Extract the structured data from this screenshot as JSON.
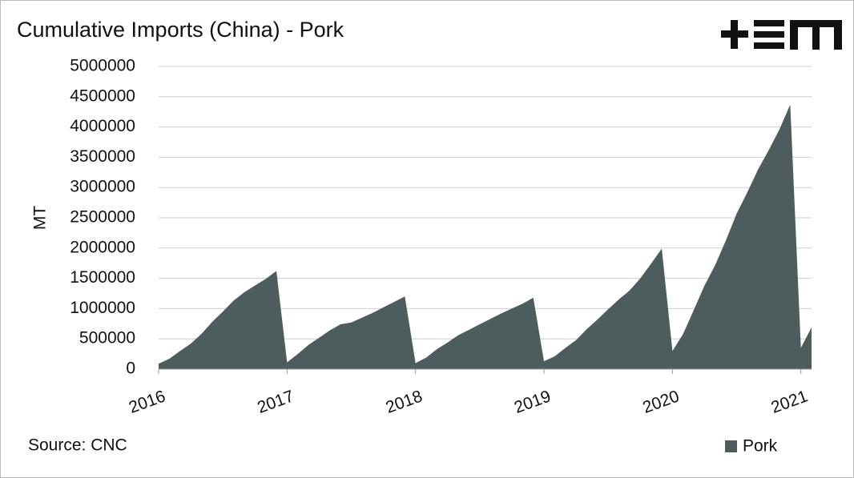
{
  "chart_data": {
    "type": "area",
    "title": "Cumulative Imports (China) - Pork",
    "ylabel": "MT",
    "source": "Source: CNC",
    "x": [
      2016,
      2016.083,
      2016.167,
      2016.25,
      2016.333,
      2016.417,
      2016.5,
      2016.583,
      2016.667,
      2016.75,
      2016.833,
      2016.917,
      2017,
      2017.083,
      2017.167,
      2017.25,
      2017.333,
      2017.417,
      2017.5,
      2017.583,
      2017.667,
      2017.75,
      2017.833,
      2017.917,
      2018,
      2018.083,
      2018.167,
      2018.25,
      2018.333,
      2018.417,
      2018.5,
      2018.583,
      2018.667,
      2018.75,
      2018.833,
      2018.917,
      2019,
      2019.083,
      2019.167,
      2019.25,
      2019.333,
      2019.417,
      2019.5,
      2019.583,
      2019.667,
      2019.75,
      2019.833,
      2019.917,
      2020,
      2020.083,
      2020.167,
      2020.25,
      2020.333,
      2020.417,
      2020.5,
      2020.583,
      2020.667,
      2020.75,
      2020.833,
      2020.917,
      2021,
      2021.083
    ],
    "series": [
      {
        "name": "Pork",
        "color": "#4d5c5c",
        "values": [
          90000,
          170000,
          300000,
          420000,
          580000,
          780000,
          950000,
          1130000,
          1270000,
          1380000,
          1490000,
          1620000,
          110000,
          250000,
          400000,
          520000,
          640000,
          740000,
          770000,
          850000,
          930000,
          1020000,
          1110000,
          1200000,
          100000,
          190000,
          330000,
          440000,
          560000,
          650000,
          740000,
          830000,
          920000,
          1000000,
          1080000,
          1180000,
          130000,
          210000,
          350000,
          480000,
          660000,
          820000,
          990000,
          1150000,
          1300000,
          1500000,
          1740000,
          1990000,
          300000,
          580000,
          980000,
          1380000,
          1720000,
          2130000,
          2570000,
          2920000,
          3300000,
          3620000,
          3960000,
          4370000,
          350000,
          690000
        ]
      }
    ],
    "xlim": [
      2016,
      2021.083
    ],
    "xticks": [
      2016,
      2017,
      2018,
      2019,
      2020,
      2021
    ],
    "ylim": [
      0,
      5000000
    ],
    "yticks": [
      0,
      500000,
      1000000,
      1500000,
      2000000,
      2500000,
      3000000,
      3500000,
      4000000,
      4500000,
      5000000
    ],
    "grid": true,
    "legend": "bottom-right"
  }
}
